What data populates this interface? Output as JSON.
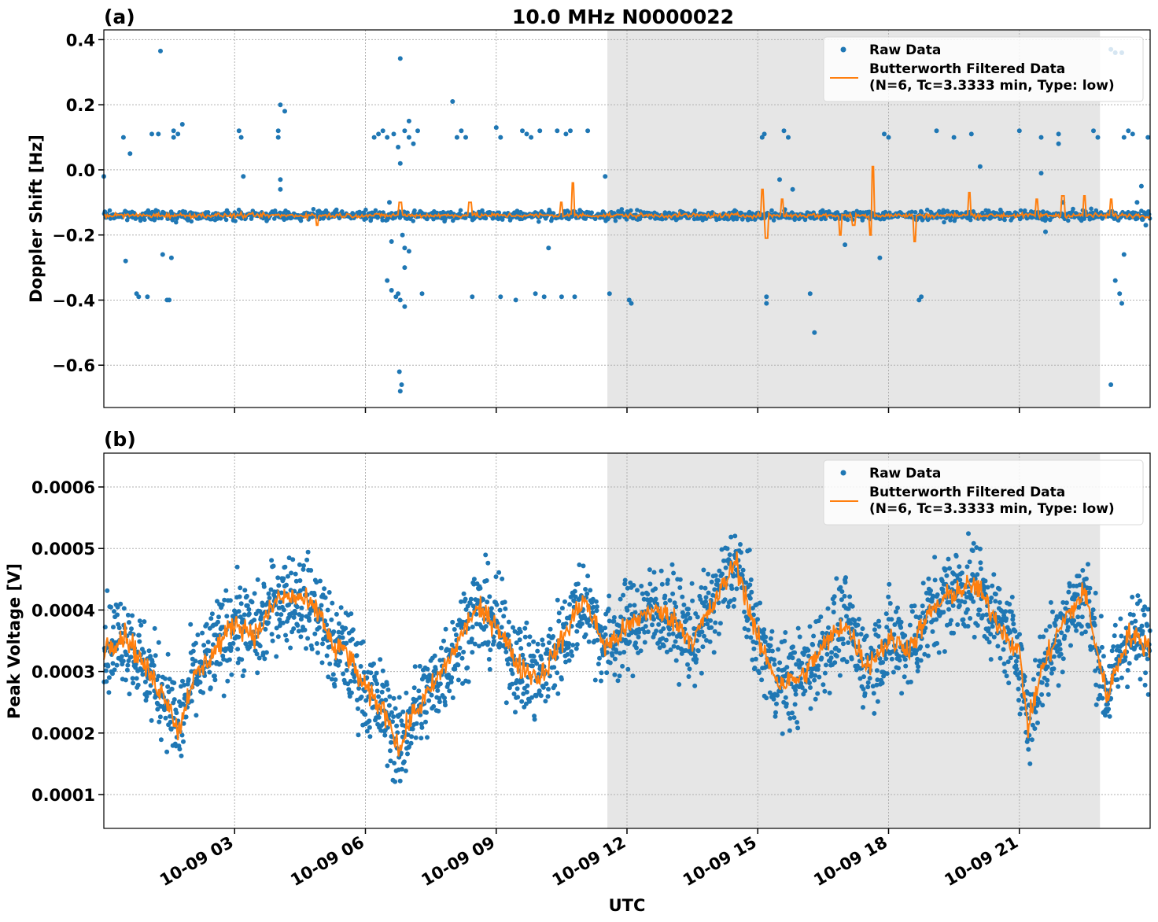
{
  "figure": {
    "title": "10.0 MHz N0000022",
    "xlabel": "UTC"
  },
  "colors": {
    "raw": "#1f77b4",
    "filtered": "#ff7f0e",
    "shade": "#e6e6e6",
    "grid": "#b0b0b0"
  },
  "chart_data": [
    {
      "type": "scatter",
      "panel_label": "(a)",
      "title": "10.0 MHz N0000022",
      "ylabel": "Doppler Shift [Hz]",
      "xlabel": "",
      "x_unit": "hours UTC on 10-09",
      "xlim": [
        0.0,
        24.0
      ],
      "ylim": [
        -0.73,
        0.43
      ],
      "yticks": [
        0.4,
        0.2,
        0.0,
        -0.2,
        -0.4,
        -0.6
      ],
      "ytick_labels": [
        "0.4",
        "0.2",
        "0.0",
        "−0.2",
        "−0.4",
        "−0.6"
      ],
      "xticks": [
        3,
        6,
        9,
        12,
        15,
        18,
        21
      ],
      "grid": true,
      "shaded_interval": [
        11.55,
        22.85
      ],
      "legend": {
        "placement": "upper-right",
        "entries": [
          "Raw Data",
          "Butterworth Filtered Data",
          "(N=6, Tc=3.3333 min, Type: low)"
        ]
      },
      "series": [
        {
          "name": "Raw Data",
          "style": "points",
          "baseline": -0.14,
          "band_halfwidth": 0.02,
          "outliers": [
            [
              0.0,
              -0.02
            ],
            [
              0.45,
              0.1
            ],
            [
              0.5,
              -0.28
            ],
            [
              0.6,
              0.05
            ],
            [
              0.75,
              -0.38
            ],
            [
              0.8,
              -0.39
            ],
            [
              1.0,
              -0.39
            ],
            [
              1.1,
              0.11
            ],
            [
              1.25,
              0.11
            ],
            [
              1.3,
              0.365
            ],
            [
              1.45,
              -0.4
            ],
            [
              1.5,
              -0.4
            ],
            [
              1.6,
              0.12
            ],
            [
              1.6,
              0.1
            ],
            [
              1.7,
              0.11
            ],
            [
              1.8,
              0.14
            ],
            [
              1.35,
              -0.26
            ],
            [
              1.55,
              -0.27
            ],
            [
              3.1,
              0.12
            ],
            [
              3.15,
              0.1
            ],
            [
              3.2,
              -0.02
            ],
            [
              4.0,
              0.1
            ],
            [
              4.0,
              0.12
            ],
            [
              4.05,
              -0.03
            ],
            [
              4.15,
              0.18
            ],
            [
              4.05,
              0.2
            ],
            [
              4.05,
              -0.06
            ],
            [
              6.2,
              0.1
            ],
            [
              6.3,
              0.11
            ],
            [
              6.4,
              0.12
            ],
            [
              6.5,
              0.1
            ],
            [
              6.65,
              0.11
            ],
            [
              6.75,
              0.07
            ],
            [
              6.8,
              0.02
            ],
            [
              6.8,
              0.342
            ],
            [
              6.85,
              -0.2
            ],
            [
              6.75,
              -0.38
            ],
            [
              6.8,
              -0.4
            ],
            [
              6.9,
              -0.42
            ],
            [
              6.78,
              -0.62
            ],
            [
              6.8,
              -0.68
            ],
            [
              6.83,
              -0.66
            ],
            [
              6.5,
              -0.34
            ],
            [
              6.6,
              -0.37
            ],
            [
              6.7,
              -0.39
            ],
            [
              6.9,
              0.12
            ],
            [
              7.0,
              0.1
            ],
            [
              7.1,
              0.08
            ],
            [
              7.0,
              0.15
            ],
            [
              7.2,
              0.12
            ],
            [
              7.3,
              -0.38
            ],
            [
              7.0,
              -0.25
            ],
            [
              6.9,
              -0.3
            ],
            [
              6.55,
              -0.1
            ],
            [
              6.6,
              -0.22
            ],
            [
              6.9,
              -0.24
            ],
            [
              8.0,
              0.21
            ],
            [
              8.1,
              0.1
            ],
            [
              8.2,
              0.12
            ],
            [
              8.3,
              0.1
            ],
            [
              8.45,
              -0.39
            ],
            [
              9.0,
              0.13
            ],
            [
              9.1,
              0.1
            ],
            [
              9.1,
              -0.39
            ],
            [
              9.45,
              -0.4
            ],
            [
              9.6,
              0.12
            ],
            [
              9.7,
              0.11
            ],
            [
              9.8,
              0.1
            ],
            [
              9.9,
              -0.38
            ],
            [
              10.0,
              0.12
            ],
            [
              10.1,
              -0.39
            ],
            [
              10.2,
              -0.24
            ],
            [
              10.4,
              0.12
            ],
            [
              10.5,
              -0.39
            ],
            [
              10.6,
              0.11
            ],
            [
              10.7,
              0.12
            ],
            [
              10.8,
              -0.39
            ],
            [
              11.1,
              0.12
            ],
            [
              11.5,
              -0.02
            ],
            [
              11.6,
              -0.38
            ],
            [
              12.05,
              -0.4
            ],
            [
              12.1,
              -0.41
            ],
            [
              15.1,
              0.1
            ],
            [
              15.15,
              0.11
            ],
            [
              15.2,
              -0.39
            ],
            [
              15.2,
              -0.41
            ],
            [
              15.5,
              -0.03
            ],
            [
              15.6,
              0.12
            ],
            [
              15.7,
              0.1
            ],
            [
              15.8,
              -0.06
            ],
            [
              16.2,
              -0.38
            ],
            [
              16.3,
              -0.5
            ],
            [
              17.0,
              -0.23
            ],
            [
              17.9,
              0.11
            ],
            [
              18.0,
              0.1
            ],
            [
              17.8,
              -0.27
            ],
            [
              18.7,
              -0.4
            ],
            [
              18.75,
              -0.39
            ],
            [
              19.1,
              0.12
            ],
            [
              19.5,
              0.1
            ],
            [
              19.9,
              0.11
            ],
            [
              20.1,
              0.01
            ],
            [
              21.0,
              0.12
            ],
            [
              21.5,
              0.1
            ],
            [
              21.5,
              -0.01
            ],
            [
              21.6,
              -0.19
            ],
            [
              21.9,
              0.08
            ],
            [
              21.9,
              0.11
            ],
            [
              22.0,
              -0.1
            ],
            [
              22.7,
              0.12
            ],
            [
              22.8,
              0.1
            ],
            [
              23.1,
              0.37
            ],
            [
              23.2,
              0.36
            ],
            [
              23.35,
              0.36
            ],
            [
              23.1,
              -0.66
            ],
            [
              23.2,
              -0.34
            ],
            [
              23.3,
              -0.38
            ],
            [
              23.35,
              -0.41
            ],
            [
              23.4,
              -0.26
            ],
            [
              23.4,
              0.1
            ],
            [
              23.5,
              0.12
            ],
            [
              23.6,
              0.11
            ],
            [
              23.7,
              -0.1
            ],
            [
              23.8,
              -0.05
            ],
            [
              23.9,
              -0.17
            ],
            [
              23.95,
              0.1
            ]
          ]
        },
        {
          "name": "Butterworth Filtered Data",
          "style": "line",
          "baseline": -0.14,
          "spikes": [
            [
              4.9,
              -0.17
            ],
            [
              6.8,
              -0.1
            ],
            [
              8.4,
              -0.1
            ],
            [
              10.5,
              -0.1
            ],
            [
              10.75,
              -0.04
            ],
            [
              15.1,
              -0.06
            ],
            [
              15.2,
              -0.21
            ],
            [
              15.55,
              -0.09
            ],
            [
              16.9,
              -0.2
            ],
            [
              17.2,
              -0.17
            ],
            [
              17.6,
              -0.2
            ],
            [
              17.65,
              0.01
            ],
            [
              18.6,
              -0.22
            ],
            [
              19.85,
              -0.07
            ],
            [
              21.4,
              -0.09
            ],
            [
              22.0,
              -0.08
            ],
            [
              22.5,
              -0.08
            ],
            [
              23.1,
              -0.09
            ]
          ]
        }
      ]
    },
    {
      "type": "scatter",
      "panel_label": "(b)",
      "title": "",
      "ylabel": "Peak Voltage [V]",
      "xlabel": "UTC",
      "x_unit": "hours UTC on 10-09",
      "xlim": [
        0.0,
        24.0
      ],
      "ylim": [
        4.5e-05,
        0.000655
      ],
      "yticks": [
        0.0006,
        0.0005,
        0.0004,
        0.0003,
        0.0002,
        0.0001
      ],
      "ytick_labels": [
        "0.0006",
        "0.0005",
        "0.0004",
        "0.0003",
        "0.0002",
        "0.0001"
      ],
      "xticks": [
        3,
        6,
        9,
        12,
        15,
        18,
        21
      ],
      "xtick_labels": [
        "10-09 03",
        "10-09 06",
        "10-09 09",
        "10-09 12",
        "10-09 15",
        "10-09 18",
        "10-09 21"
      ],
      "grid": true,
      "shaded_interval": [
        11.55,
        22.85
      ],
      "legend": {
        "placement": "upper-right",
        "entries": [
          "Raw Data",
          "Butterworth Filtered Data",
          "(N=6, Tc=3.3333 min, Type: low)"
        ]
      },
      "series": [
        {
          "name": "Butterworth Filtered Data",
          "style": "line",
          "x": [
            0.0,
            0.5,
            1.0,
            1.5,
            1.7,
            2.0,
            2.5,
            3.0,
            3.5,
            4.0,
            4.5,
            5.0,
            5.3,
            5.5,
            6.0,
            6.5,
            6.8,
            7.0,
            7.5,
            8.0,
            8.5,
            9.0,
            9.5,
            10.0,
            10.5,
            11.0,
            11.5,
            12.0,
            12.5,
            13.0,
            13.5,
            14.0,
            14.5,
            15.0,
            15.5,
            16.0,
            16.5,
            17.0,
            17.5,
            18.0,
            18.5,
            19.0,
            19.5,
            20.0,
            20.5,
            21.0,
            21.2,
            21.5,
            22.0,
            22.5,
            23.0,
            23.5,
            24.0
          ],
          "y": [
            0.00034,
            0.00036,
            0.0003,
            0.00025,
            0.0002,
            0.00028,
            0.00033,
            0.00038,
            0.00036,
            0.00042,
            0.00042,
            0.00039,
            0.00033,
            0.00034,
            0.00027,
            0.00023,
            0.00017,
            0.00022,
            0.00027,
            0.00033,
            0.0004,
            0.00038,
            0.00031,
            0.00029,
            0.00035,
            0.00042,
            0.00034,
            0.00037,
            0.0004,
            0.00039,
            0.00035,
            0.00041,
            0.00048,
            0.00035,
            0.00028,
            0.00029,
            0.00034,
            0.00038,
            0.00031,
            0.00035,
            0.00034,
            0.0004,
            0.00043,
            0.00044,
            0.00038,
            0.00033,
            0.00021,
            0.0003,
            0.00038,
            0.00043,
            0.00026,
            0.00036,
            0.00034
          ]
        },
        {
          "name": "Raw Data",
          "style": "points",
          "band_halfwidth": 9e-05
        }
      ]
    }
  ]
}
